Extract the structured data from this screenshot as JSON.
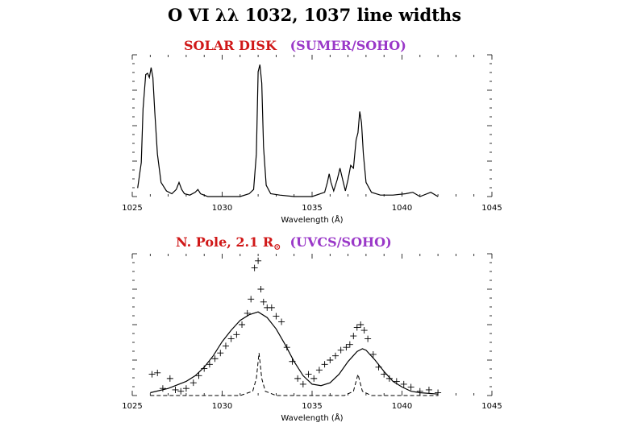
{
  "figure": {
    "title": "O VI λλ 1032, 1037 line widths",
    "panels": [
      {
        "label_red": "SOLAR DISK",
        "label_purple": "(SUMER/SOHO)"
      },
      {
        "label_red": "N. Pole, 2.1 R",
        "label_sub": "⊙",
        "label_purple": "(UVCS/SOHO)"
      }
    ],
    "colors": {
      "title_text": "#000000",
      "red_label": "#d01818",
      "purple_label": "#9a38c8",
      "plot_line": "#000000"
    }
  },
  "chart_data": [
    {
      "type": "line",
      "xlabel": "Wavelength (Å)",
      "ylabel": "",
      "xlim": [
        1025,
        1045
      ],
      "ylim": [
        0,
        1
      ],
      "xticks": [
        1025,
        1030,
        1035,
        1040,
        1045
      ],
      "grid": false,
      "series": [
        {
          "style": "solid",
          "x": [
            1025.3,
            1025.5,
            1025.6,
            1025.75,
            1025.85,
            1025.95,
            1026.05,
            1026.15,
            1026.25,
            1026.4,
            1026.6,
            1026.9,
            1027.2,
            1027.45,
            1027.6,
            1027.75,
            1027.9,
            1028.2,
            1028.5,
            1028.65,
            1028.8,
            1029.2,
            1030.0,
            1031.0,
            1031.5,
            1031.75,
            1031.9,
            1032.0,
            1032.1,
            1032.2,
            1032.3,
            1032.45,
            1032.7,
            1033.2,
            1034.0,
            1035.0,
            1035.7,
            1035.85,
            1035.95,
            1036.05,
            1036.2,
            1036.4,
            1036.55,
            1036.7,
            1036.85,
            1037.0,
            1037.15,
            1037.3,
            1037.45,
            1037.55,
            1037.65,
            1037.75,
            1037.85,
            1038.0,
            1038.3,
            1038.8,
            1039.5,
            1040.2,
            1040.6,
            1041.0,
            1041.6,
            1042.0
          ],
          "y": [
            0.06,
            0.24,
            0.62,
            0.86,
            0.87,
            0.84,
            0.91,
            0.84,
            0.6,
            0.3,
            0.1,
            0.04,
            0.02,
            0.05,
            0.1,
            0.05,
            0.02,
            0.01,
            0.03,
            0.05,
            0.02,
            0.0,
            0.0,
            0.0,
            0.02,
            0.05,
            0.3,
            0.88,
            0.93,
            0.8,
            0.35,
            0.08,
            0.02,
            0.01,
            0.0,
            0.0,
            0.03,
            0.1,
            0.16,
            0.1,
            0.04,
            0.12,
            0.2,
            0.12,
            0.04,
            0.12,
            0.22,
            0.2,
            0.4,
            0.45,
            0.6,
            0.52,
            0.3,
            0.1,
            0.03,
            0.01,
            0.01,
            0.02,
            0.03,
            0.0,
            0.03,
            0.0
          ]
        }
      ]
    },
    {
      "type": "line",
      "xlabel": "Wavelength (Å)",
      "ylabel": "",
      "xlim": [
        1025,
        1045
      ],
      "ylim": [
        0,
        1
      ],
      "xticks": [
        1025,
        1030,
        1035,
        1040,
        1045
      ],
      "grid": false,
      "series": [
        {
          "style": "solid",
          "x": [
            1026,
            1027,
            1028,
            1028.5,
            1029,
            1029.5,
            1030,
            1030.5,
            1031,
            1031.5,
            1032,
            1032.5,
            1033,
            1033.5,
            1034,
            1034.5,
            1035,
            1035.5,
            1036,
            1036.5,
            1037,
            1037.5,
            1037.8,
            1038,
            1038.5,
            1039,
            1039.5,
            1040,
            1040.5,
            1041,
            1042
          ],
          "y": [
            0.02,
            0.05,
            0.1,
            0.14,
            0.2,
            0.28,
            0.38,
            0.46,
            0.53,
            0.57,
            0.59,
            0.55,
            0.47,
            0.36,
            0.24,
            0.14,
            0.08,
            0.07,
            0.09,
            0.15,
            0.24,
            0.31,
            0.33,
            0.32,
            0.25,
            0.17,
            0.1,
            0.06,
            0.03,
            0.02,
            0.01
          ]
        },
        {
          "style": "dashed",
          "x": [
            1026,
            1027,
            1028,
            1029,
            1030,
            1031,
            1031.7,
            1031.9,
            1032.05,
            1032.2,
            1032.4,
            1033,
            1034,
            1035,
            1036,
            1036.8,
            1037.3,
            1037.55,
            1037.8,
            1038.3,
            1039,
            1040,
            1042
          ],
          "y": [
            0.0,
            0.0,
            0.0,
            0.0,
            0.0,
            0.0,
            0.03,
            0.12,
            0.3,
            0.12,
            0.03,
            0.0,
            0.0,
            0.0,
            0.0,
            0.0,
            0.03,
            0.15,
            0.03,
            0.0,
            0.0,
            0.0,
            0.0
          ]
        },
        {
          "style": "markers",
          "marker": "+",
          "x": [
            1026.1,
            1026.4,
            1026.7,
            1027.1,
            1027.4,
            1027.7,
            1028.0,
            1028.4,
            1028.7,
            1029.0,
            1029.3,
            1029.6,
            1029.9,
            1030.2,
            1030.5,
            1030.8,
            1031.1,
            1031.4,
            1031.6,
            1031.8,
            1032.0,
            1032.15,
            1032.3,
            1032.5,
            1032.75,
            1033.0,
            1033.3,
            1033.6,
            1033.9,
            1034.2,
            1034.5,
            1034.8,
            1035.1,
            1035.4,
            1035.7,
            1036.0,
            1036.3,
            1036.6,
            1036.9,
            1037.1,
            1037.3,
            1037.5,
            1037.7,
            1037.9,
            1038.1,
            1038.4,
            1038.7,
            1039.0,
            1039.3,
            1039.7,
            1040.1,
            1040.5,
            1041.0,
            1041.5,
            1042.0
          ],
          "y": [
            0.15,
            0.16,
            0.05,
            0.12,
            0.04,
            0.03,
            0.05,
            0.09,
            0.14,
            0.19,
            0.22,
            0.26,
            0.3,
            0.35,
            0.4,
            0.43,
            0.5,
            0.58,
            0.68,
            0.9,
            0.95,
            0.75,
            0.66,
            0.62,
            0.62,
            0.56,
            0.52,
            0.34,
            0.24,
            0.12,
            0.08,
            0.15,
            0.12,
            0.18,
            0.22,
            0.25,
            0.28,
            0.32,
            0.34,
            0.36,
            0.42,
            0.48,
            0.5,
            0.46,
            0.4,
            0.29,
            0.2,
            0.15,
            0.12,
            0.1,
            0.08,
            0.06,
            0.03,
            0.04,
            0.02
          ]
        }
      ]
    }
  ]
}
